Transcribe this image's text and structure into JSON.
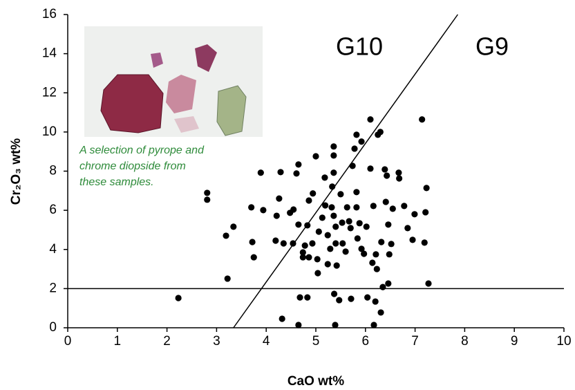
{
  "chart_data": {
    "type": "scatter",
    "xlabel": "CaO wt%",
    "ylabel": "Cr₂O₃ wt%",
    "xlim": [
      0,
      10
    ],
    "ylim": [
      0,
      16
    ],
    "xticks": [
      0,
      1,
      2,
      3,
      4,
      5,
      6,
      7,
      8,
      9,
      10
    ],
    "yticks": [
      0,
      2,
      4,
      6,
      8,
      10,
      12,
      14,
      16
    ],
    "color": "#000000",
    "annotations": [
      "G10",
      "G9"
    ],
    "note": [
      "A selection of pyrope and",
      "chrome diopside from",
      "these samples."
    ],
    "reference_lines": [
      {
        "x": [
          3.34,
          7.86
        ],
        "y": [
          0,
          16
        ]
      },
      {
        "x": [
          0,
          10
        ],
        "y": [
          2,
          2
        ]
      }
    ],
    "x": [
      2.23,
      2.81,
      2.81,
      3.19,
      3.34,
      3.22,
      3.7,
      3.72,
      3.75,
      3.94,
      3.89,
      4.32,
      4.29,
      4.26,
      4.21,
      4.19,
      4.35,
      4.48,
      4.54,
      4.55,
      4.61,
      4.65,
      4.65,
      4.68,
      4.65,
      4.78,
      4.74,
      4.74,
      4.83,
      4.83,
      4.86,
      4.94,
      4.93,
      5.0,
      5.03,
      5.04,
      5.06,
      5.13,
      5.18,
      5.19,
      5.24,
      5.24,
      5.29,
      5.36,
      5.36,
      5.36,
      5.33,
      5.32,
      5.36,
      5.4,
      5.4,
      5.42,
      5.37,
      5.39,
      5.47,
      5.5,
      5.53,
      5.54,
      5.6,
      5.63,
      5.67,
      5.7,
      5.71,
      5.74,
      5.78,
      5.82,
      5.82,
      5.84,
      5.82,
      5.92,
      5.88,
      5.92,
      5.97,
      6.02,
      6.1,
      6.04,
      6.1,
      6.14,
      6.16,
      6.17,
      6.2,
      6.23,
      6.25,
      6.3,
      6.32,
      6.31,
      6.35,
      6.43,
      6.39,
      6.41,
      6.46,
      6.48,
      6.55,
      6.52,
      6.46,
      6.67,
      6.68,
      6.78,
      6.85,
      6.95,
      7.14,
      7.23,
      7.21,
      7.19,
      7.27,
      6.99,
      6.21,
      4.86
    ],
    "values": [
      1.52,
      6.89,
      6.54,
      4.7,
      5.16,
      2.51,
      6.15,
      4.38,
      3.6,
      6.01,
      7.92,
      0.46,
      7.95,
      6.6,
      5.72,
      4.45,
      4.31,
      5.87,
      4.31,
      6.04,
      7.88,
      8.34,
      5.27,
      1.55,
      0.14,
      4.2,
      3.6,
      3.85,
      1.55,
      5.23,
      6.5,
      6.86,
      4.31,
      8.76,
      3.5,
      2.79,
      4.91,
      5.62,
      7.67,
      6.25,
      4.73,
      3.25,
      4.03,
      9.26,
      8.8,
      7.92,
      7.21,
      6.15,
      5.72,
      5.16,
      4.31,
      3.18,
      1.73,
      0.14,
      1.41,
      6.82,
      5.37,
      4.31,
      3.89,
      6.15,
      5.44,
      5.09,
      1.48,
      8.27,
      9.15,
      6.93,
      6.15,
      4.56,
      9.86,
      9.51,
      5.34,
      4.03,
      3.78,
      5.16,
      8.13,
      1.55,
      10.64,
      3.32,
      6.22,
      0.14,
      1.34,
      3.0,
      9.86,
      10.0,
      4.38,
      0.78,
      2.08,
      7.77,
      8.09,
      6.43,
      5.27,
      3.75,
      6.08,
      4.28,
      2.26,
      7.92,
      7.63,
      6.22,
      5.09,
      4.49,
      10.64,
      7.14,
      5.9,
      4.35,
      2.26,
      5.8,
      3.75,
      3.6
    ]
  }
}
